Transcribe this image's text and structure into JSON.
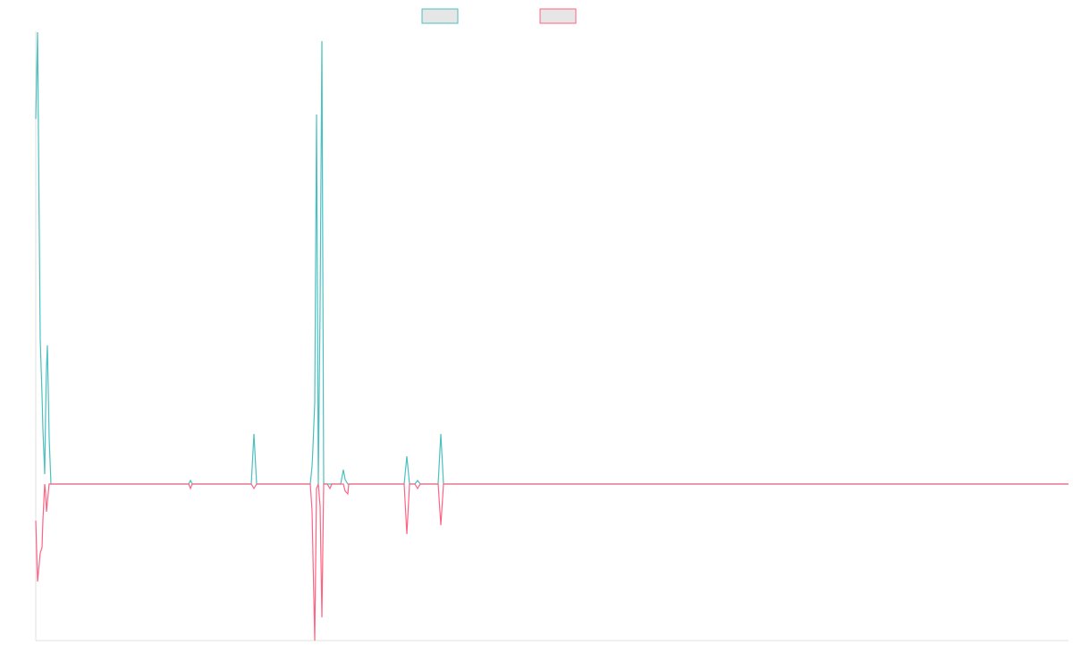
{
  "chart_data": {
    "type": "line",
    "x": [
      0,
      2,
      5,
      7,
      8,
      10,
      11,
      12,
      13,
      15,
      17,
      171,
      173,
      175,
      241,
      244,
      247,
      307,
      309,
      310,
      312,
      314,
      316,
      318,
      320,
      322,
      326,
      329,
      331,
      341,
      344,
      346,
      349,
      350,
      412,
      415,
      418,
      424,
      427,
      430,
      450,
      453,
      456,
      1155
    ],
    "series": [
      {
        "color": "#4bc0c0",
        "values": [
          408,
          505,
          161,
          100,
          61,
          11,
          80,
          130,
          155,
          51,
          0,
          0,
          4,
          0,
          0,
          56,
          0,
          0,
          20,
          41,
          91,
          413,
          0,
          200,
          495,
          0,
          0,
          0,
          0,
          0,
          16,
          5,
          0,
          0,
          0,
          31,
          0,
          0,
          4,
          0,
          0,
          56,
          0,
          0
        ]
      },
      {
        "color": "#ff6384",
        "values": [
          -41,
          -109,
          -77,
          -71,
          -40,
          0,
          -10,
          -31,
          -20,
          0,
          0,
          0,
          -5,
          0,
          0,
          -5,
          0,
          0,
          -30,
          -80,
          -175,
          -5,
          0,
          -25,
          -149,
          0,
          0,
          -5,
          0,
          0,
          0,
          -8,
          -11,
          0,
          0,
          -56,
          0,
          0,
          -5,
          0,
          0,
          -46,
          0,
          0
        ]
      }
    ],
    "xlim": [
      0,
      1155
    ],
    "ylim": [
      -175,
      505
    ],
    "grid": false,
    "legend": "top"
  }
}
